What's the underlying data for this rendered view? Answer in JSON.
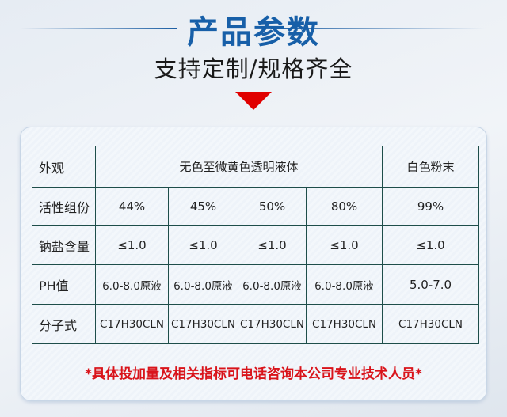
{
  "header": {
    "title": "产品参数",
    "subtitle": "支持定制/规格齐全",
    "arrow_color": "#e00000",
    "title_color": "#175fa8"
  },
  "table": {
    "rows": [
      {
        "label": "外观",
        "cells": [
          "无色至微黄色透明液体",
          "白色粉末"
        ]
      },
      {
        "label": "活性组份",
        "cells": [
          "44%",
          "45%",
          "50%",
          "80%",
          "99%"
        ]
      },
      {
        "label": "钠盐含量",
        "cells": [
          "≤1.0",
          "≤1.0",
          "≤1.0",
          "≤1.0",
          "≤1.0"
        ]
      },
      {
        "label": "PH值",
        "cells": [
          "6.0-8.0原液",
          "6.0-8.0原液",
          "6.0-8.0原液",
          "6.0-8.0原液",
          "5.0-7.0"
        ]
      },
      {
        "label": "分子式",
        "cells": [
          "C17H30CLN",
          "C17H30CLN",
          "C17H30CLN",
          "C17H30CLN",
          "C17H30CLN"
        ]
      }
    ]
  },
  "note": "*具体投加量及相关指标可电话咨询本公司专业技术人员*"
}
